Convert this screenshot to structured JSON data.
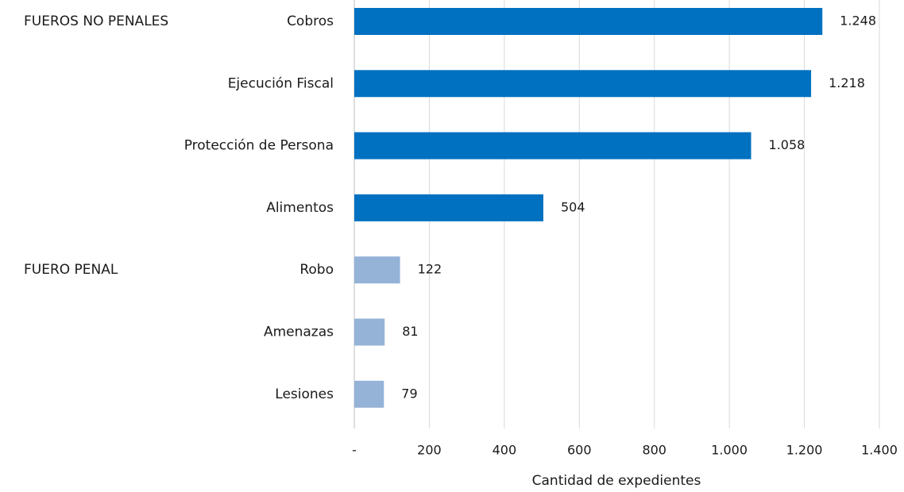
{
  "chart_data": {
    "type": "bar",
    "orientation": "horizontal",
    "x_label": "Cantidad de expedientes",
    "groups": [
      {
        "name": "FUEROS NO PENALES",
        "color": "#0070c0",
        "categories": [
          "Cobros",
          "Ejecución Fiscal",
          "Protección de Persona",
          "Alimentos"
        ],
        "values": [
          1248,
          1218,
          1058,
          504
        ],
        "value_labels": [
          "1.248",
          "1.218",
          "1.058",
          "504"
        ]
      },
      {
        "name": "FUERO PENAL",
        "color": "#95b3d7",
        "categories": [
          "Robo",
          "Amenazas",
          "Lesiones"
        ],
        "values": [
          122,
          81,
          79
        ],
        "value_labels": [
          "122",
          "81",
          "79"
        ]
      }
    ],
    "xlim": [
      0,
      1400
    ],
    "xticks": [
      {
        "value": 0,
        "label": "-"
      },
      200,
      400,
      600,
      800,
      {
        "value": 1000,
        "label": "1.000"
      },
      {
        "value": 1200,
        "label": "1.200"
      },
      {
        "value": 1400,
        "label": "1.400"
      }
    ],
    "grid": true
  }
}
